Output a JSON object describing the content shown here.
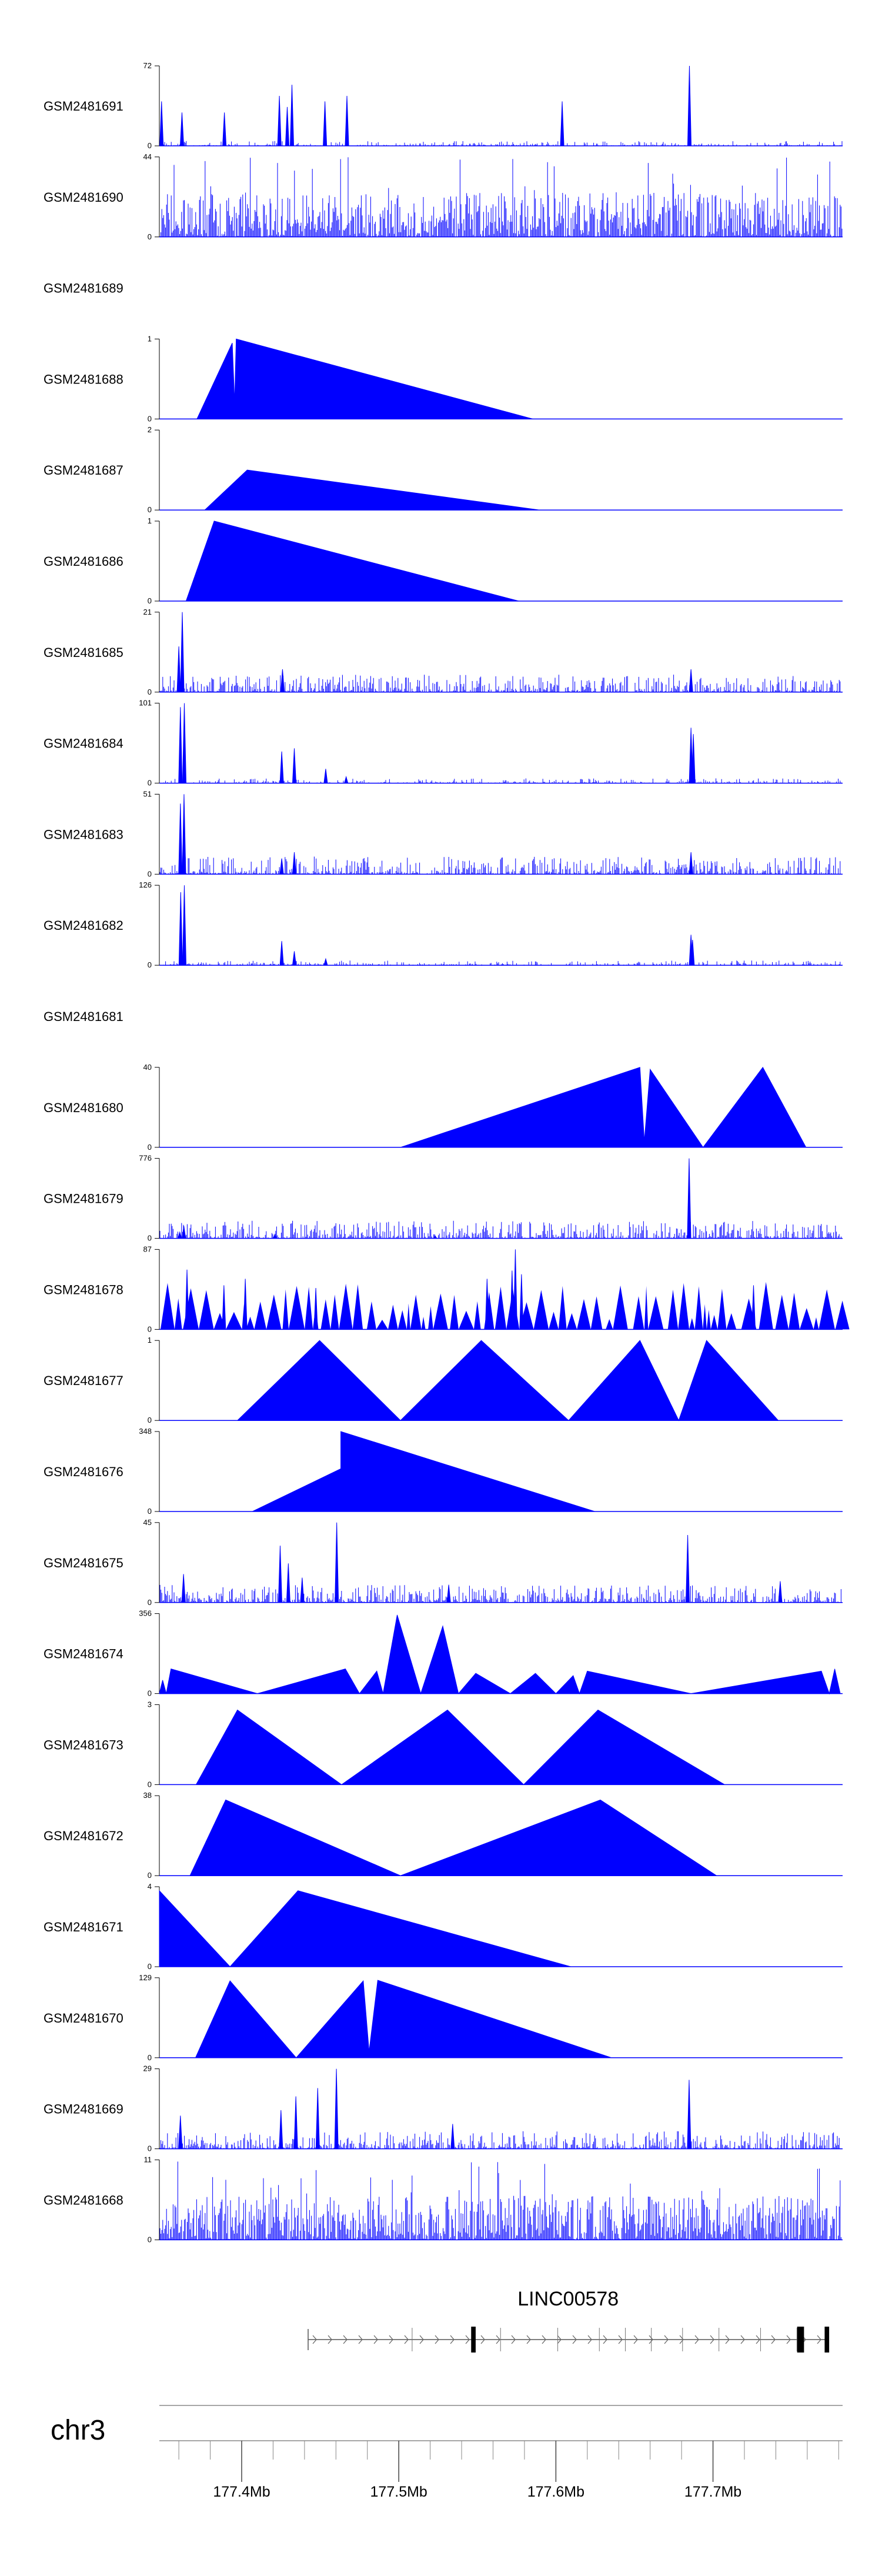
{
  "chart_data": {
    "type": "area",
    "title": "",
    "genome": {
      "chromosome": "chr3",
      "xlim_mb": [
        177.3476,
        177.7825
      ],
      "ticks_mb": [
        177.4,
        177.5,
        177.6,
        177.7
      ],
      "tick_labels": [
        "177.4Mb",
        "177.5Mb",
        "177.6Mb",
        "177.7Mb"
      ]
    },
    "gene": {
      "name": "LINC00578",
      "start_mb": 177.4423,
      "end_mb": 177.7733,
      "strand": "+",
      "exons_mb": [
        177.547,
        177.548,
        177.7545,
        177.7555,
        177.757,
        177.772,
        177.773
      ]
    },
    "tracks": [
      {
        "name": "GSM2481691",
        "ymax": 72,
        "pattern": "sparse_peaks",
        "data": [
          [
            177.349,
            40
          ],
          [
            177.362,
            30
          ],
          [
            177.389,
            30
          ],
          [
            177.424,
            45
          ],
          [
            177.429,
            35
          ],
          [
            177.432,
            55
          ],
          [
            177.453,
            40
          ],
          [
            177.467,
            45
          ],
          [
            177.604,
            40
          ],
          [
            177.685,
            72
          ]
        ]
      },
      {
        "name": "GSM2481690",
        "ymax": 44,
        "pattern": "dense_noise",
        "data": []
      },
      {
        "name": "GSM2481689",
        "ymax": null,
        "pattern": "empty",
        "data": []
      },
      {
        "name": "GSM2481688",
        "ymax": 1,
        "pattern": "polygon",
        "data": [
          [
            177.3715,
            0
          ],
          [
            177.394,
            0.95
          ],
          [
            177.3955,
            0.2
          ],
          [
            177.3965,
            1.0
          ],
          [
            177.5853,
            0
          ]
        ]
      },
      {
        "name": "GSM2481687",
        "ymax": 2,
        "pattern": "polygon",
        "data": [
          [
            177.3765,
            0
          ],
          [
            177.4035,
            1.0
          ],
          [
            177.5897,
            0
          ]
        ]
      },
      {
        "name": "GSM2481686",
        "ymax": 1,
        "pattern": "polygon",
        "data": [
          [
            177.3646,
            0
          ],
          [
            177.3825,
            1.0
          ],
          [
            177.5764,
            0
          ]
        ]
      },
      {
        "name": "GSM2481685",
        "ymax": 21,
        "pattern": "noise_peaks",
        "data": [
          [
            177.3622,
            21
          ],
          [
            177.36,
            12
          ],
          [
            177.426,
            6
          ],
          [
            177.686,
            6
          ]
        ]
      },
      {
        "name": "GSM2481684",
        "ymax": 101,
        "pattern": "sparse_peaks",
        "data": [
          [
            177.361,
            96
          ],
          [
            177.3635,
            101
          ],
          [
            177.4255,
            40
          ],
          [
            177.4335,
            44
          ],
          [
            177.4535,
            18
          ],
          [
            177.4665,
            8
          ],
          [
            177.686,
            70
          ],
          [
            177.6875,
            62
          ]
        ]
      },
      {
        "name": "GSM2481683",
        "ymax": 51,
        "pattern": "noise_peaks",
        "data": [
          [
            177.361,
            45
          ],
          [
            177.3633,
            51
          ],
          [
            177.4255,
            10
          ],
          [
            177.4335,
            14
          ],
          [
            177.686,
            14
          ]
        ]
      },
      {
        "name": "GSM2481682",
        "ymax": 126,
        "pattern": "sparse_peaks",
        "data": [
          [
            177.3612,
            115
          ],
          [
            177.3635,
            126
          ],
          [
            177.4255,
            38
          ],
          [
            177.4335,
            22
          ],
          [
            177.4535,
            10
          ],
          [
            177.686,
            48
          ],
          [
            177.687,
            40
          ]
        ]
      },
      {
        "name": "GSM2481681",
        "ymax": null,
        "pattern": "empty",
        "data": []
      },
      {
        "name": "GSM2481680",
        "ymax": 40,
        "pattern": "polygon",
        "data": [
          [
            177.5011,
            0
          ],
          [
            177.6535,
            40
          ],
          [
            177.6563,
            3
          ],
          [
            177.66,
            39
          ],
          [
            177.6937,
            0
          ],
          [
            177.7317,
            40
          ],
          [
            177.7592,
            0
          ]
        ]
      },
      {
        "name": "GSM2481679",
        "ymax": 776,
        "pattern": "noise_peaks",
        "data": [
          [
            177.3632,
            120
          ],
          [
            177.3606,
            60
          ],
          [
            177.4212,
            40
          ],
          [
            177.5231,
            25
          ],
          [
            177.6848,
            776
          ]
        ]
      },
      {
        "name": "GSM2481678",
        "ymax": 87,
        "pattern": "triangles_dense",
        "data": [
          [
            177.5742,
            87
          ],
          [
            177.5721,
            64
          ],
          [
            177.5781,
            60
          ],
          [
            177.3652,
            65
          ],
          [
            177.4023,
            55
          ],
          [
            177.3887,
            48
          ],
          [
            177.4472,
            45
          ],
          [
            177.5562,
            55
          ],
          [
            177.7258,
            48
          ]
        ]
      },
      {
        "name": "GSM2481677",
        "ymax": 1,
        "pattern": "polygon",
        "data": [
          [
            177.3973,
            0
          ],
          [
            177.4496,
            1.0
          ],
          [
            177.5011,
            0
          ],
          [
            177.5525,
            1.0
          ],
          [
            177.6081,
            0
          ],
          [
            177.6535,
            1.0
          ],
          [
            177.6782,
            0
          ],
          [
            177.6959,
            1.0
          ],
          [
            177.7415,
            0
          ]
        ]
      },
      {
        "name": "GSM2481676",
        "ymax": 348,
        "pattern": "polygon",
        "data": [
          [
            177.4068,
            0
          ],
          [
            177.4631,
            186
          ],
          [
            177.4631,
            348
          ],
          [
            177.6248,
            0
          ]
        ]
      },
      {
        "name": "GSM2481675",
        "ymax": 45,
        "pattern": "noise_peaks",
        "data": [
          [
            177.363,
            16
          ],
          [
            177.4245,
            32
          ],
          [
            177.4297,
            22
          ],
          [
            177.4385,
            14
          ],
          [
            177.4605,
            45
          ],
          [
            177.5318,
            10
          ],
          [
            177.6839,
            38
          ],
          [
            177.7428,
            12
          ]
        ]
      },
      {
        "name": "GSM2481674",
        "ymax": 356,
        "pattern": "polygon",
        "data": [
          [
            177.3476,
            0
          ],
          [
            177.3497,
            60
          ],
          [
            177.352,
            0
          ],
          [
            177.355,
            110
          ],
          [
            177.41,
            0
          ],
          [
            177.466,
            110
          ],
          [
            177.475,
            0
          ],
          [
            177.486,
            100
          ],
          [
            177.49,
            0
          ],
          [
            177.499,
            350
          ],
          [
            177.514,
            0
          ],
          [
            177.528,
            300
          ],
          [
            177.538,
            0
          ],
          [
            177.549,
            90
          ],
          [
            177.571,
            0
          ],
          [
            177.587,
            90
          ],
          [
            177.6,
            0
          ],
          [
            177.611,
            80
          ],
          [
            177.615,
            0
          ],
          [
            177.62,
            100
          ],
          [
            177.686,
            0
          ],
          [
            177.769,
            100
          ],
          [
            177.774,
            0
          ],
          [
            177.7775,
            110
          ],
          [
            177.781,
            0
          ]
        ]
      },
      {
        "name": "GSM2481673",
        "ymax": 3,
        "pattern": "polygon",
        "data": [
          [
            177.371,
            0
          ],
          [
            177.3973,
            2.8
          ],
          [
            177.4636,
            0
          ],
          [
            177.531,
            2.8
          ],
          [
            177.5795,
            0
          ],
          [
            177.6268,
            2.8
          ],
          [
            177.7074,
            0
          ]
        ]
      },
      {
        "name": "GSM2481672",
        "ymax": 38,
        "pattern": "polygon",
        "data": [
          [
            177.3671,
            0
          ],
          [
            177.3898,
            36
          ],
          [
            177.5011,
            0
          ],
          [
            177.6283,
            36
          ],
          [
            177.7023,
            0
          ]
        ]
      },
      {
        "name": "GSM2481671",
        "ymax": 4,
        "pattern": "polygon",
        "data": [
          [
            177.3476,
            0
          ],
          [
            177.3476,
            3.8
          ],
          [
            177.3926,
            0
          ],
          [
            177.4358,
            3.8
          ],
          [
            177.6095,
            0
          ]
        ]
      },
      {
        "name": "GSM2481670",
        "ymax": 129,
        "pattern": "polygon",
        "data": [
          [
            177.3706,
            0
          ],
          [
            177.3926,
            124
          ],
          [
            177.4347,
            0
          ],
          [
            177.4774,
            124
          ],
          [
            177.4811,
            10
          ],
          [
            177.4866,
            125
          ],
          [
            177.6355,
            0
          ]
        ]
      },
      {
        "name": "GSM2481669",
        "ymax": 29,
        "pattern": "noise_peaks",
        "data": [
          [
            177.361,
            12
          ],
          [
            177.425,
            14
          ],
          [
            177.4345,
            19
          ],
          [
            177.4484,
            22
          ],
          [
            177.4603,
            29
          ],
          [
            177.5343,
            9
          ],
          [
            177.6848,
            25
          ]
        ]
      },
      {
        "name": "GSM2481668",
        "ymax": 11,
        "pattern": "dense_noise",
        "data": []
      }
    ]
  }
}
